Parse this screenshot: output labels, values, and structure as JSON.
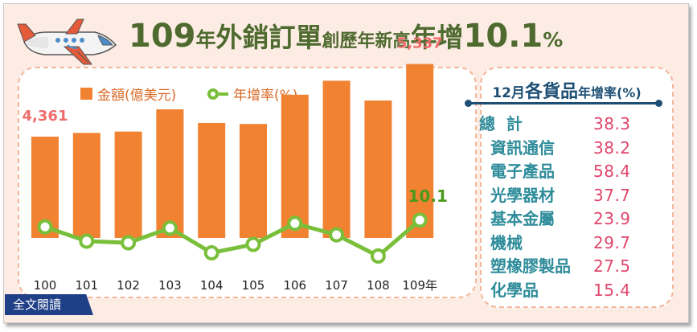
{
  "header": {
    "title_parts": [
      "109",
      "年",
      "外銷訂單",
      "創歷年新高",
      "年增",
      "10.1",
      "%"
    ]
  },
  "legend": {
    "amount": "金額(億美元)",
    "growth": "年增率(%)"
  },
  "chart_data": {
    "type": "bar",
    "categories": [
      "100",
      "101",
      "102",
      "103",
      "104",
      "105",
      "106",
      "107",
      "108",
      "109年"
    ],
    "series": [
      {
        "name": "金額(億美元)",
        "type": "bar",
        "values": [
          4361,
          4411,
          4429,
          4728,
          4545,
          4531,
          4924,
          5112,
          4846,
          5337
        ],
        "data_labels": {
          "0": "4,361",
          "9": "5,337"
        }
      },
      {
        "name": "年增率(%)",
        "type": "line",
        "values": [
          7.2,
          1.1,
          0.4,
          6.7,
          -3.9,
          -0.3,
          8.7,
          3.8,
          -5.3,
          10.1
        ],
        "data_labels": {
          "9": "10.1"
        }
      }
    ],
    "colors": {
      "bar": "#f08232",
      "line": "#79bf3a",
      "bar_label": "#ef6c6c",
      "line_label": "#4a9a1c"
    }
  },
  "panel": {
    "title_a": "12月",
    "title_b": "各貨品",
    "title_c": "年增率(%)",
    "items": [
      {
        "label": "總  計",
        "value": "38.3"
      },
      {
        "label": "資訊通信",
        "value": "38.2"
      },
      {
        "label": "電子產品",
        "value": "58.4"
      },
      {
        "label": "光學器材",
        "value": "37.7"
      },
      {
        "label": "基本金屬",
        "value": "23.9"
      },
      {
        "label": "機械",
        "value": "29.7"
      },
      {
        "label": "塑橡膠製品",
        "value": "27.5"
      },
      {
        "label": "化學品",
        "value": "15.4"
      }
    ]
  },
  "footer": {
    "read_more": "全文閱讀"
  },
  "icons": {
    "plane": "airplane-icon"
  }
}
